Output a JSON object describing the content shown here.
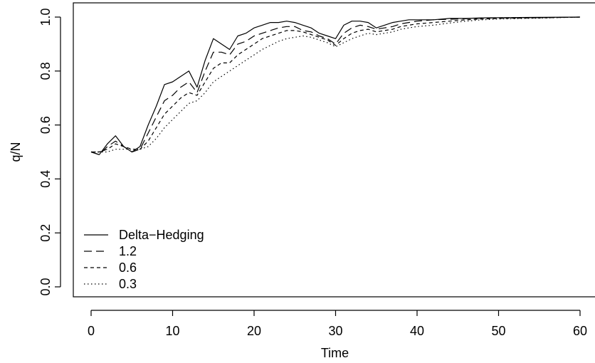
{
  "chart_data": {
    "type": "line",
    "title": "",
    "xlabel": "Time",
    "ylabel": "q/N",
    "xlim": [
      0,
      60
    ],
    "ylim": [
      0,
      1
    ],
    "x_ticks": [
      0,
      10,
      20,
      30,
      40,
      50,
      60
    ],
    "y_ticks": [
      0.0,
      0.2,
      0.4,
      0.6,
      0.8,
      1.0
    ],
    "x_tick_labels": [
      "0",
      "10",
      "20",
      "30",
      "40",
      "50",
      "60"
    ],
    "y_tick_labels": [
      "0.0",
      "0.2",
      "0.4",
      "0.6",
      "0.8",
      "1.0"
    ],
    "grid": false,
    "legend_position": "bottom-left",
    "series": [
      {
        "name": "Delta−Hedging",
        "dash": "solid",
        "x": [
          0,
          1,
          2,
          3,
          4,
          5,
          6,
          7,
          8,
          9,
          10,
          11,
          12,
          13,
          14,
          15,
          16,
          17,
          18,
          19,
          20,
          21,
          22,
          23,
          24,
          25,
          26,
          27,
          28,
          29,
          30,
          31,
          32,
          33,
          34,
          35,
          36,
          37,
          38,
          39,
          40,
          42,
          44,
          46,
          48,
          50,
          55,
          60
        ],
        "y": [
          0.5,
          0.49,
          0.53,
          0.56,
          0.52,
          0.5,
          0.52,
          0.6,
          0.67,
          0.75,
          0.76,
          0.78,
          0.8,
          0.74,
          0.84,
          0.92,
          0.9,
          0.88,
          0.93,
          0.94,
          0.96,
          0.97,
          0.98,
          0.98,
          0.985,
          0.98,
          0.97,
          0.96,
          0.94,
          0.93,
          0.92,
          0.97,
          0.985,
          0.985,
          0.98,
          0.96,
          0.97,
          0.98,
          0.985,
          0.99,
          0.99,
          0.99,
          0.995,
          0.995,
          0.997,
          0.998,
          0.999,
          1.0
        ]
      },
      {
        "name": "1.2",
        "dash": "long-dash",
        "x": [
          0,
          1,
          2,
          3,
          4,
          5,
          6,
          7,
          8,
          9,
          10,
          11,
          12,
          13,
          14,
          15,
          16,
          17,
          18,
          19,
          20,
          21,
          22,
          23,
          24,
          25,
          26,
          27,
          28,
          29,
          30,
          31,
          32,
          33,
          34,
          35,
          36,
          37,
          38,
          39,
          40,
          42,
          44,
          46,
          48,
          50,
          55,
          60
        ],
        "y": [
          0.5,
          0.49,
          0.52,
          0.54,
          0.52,
          0.5,
          0.51,
          0.57,
          0.63,
          0.69,
          0.71,
          0.74,
          0.76,
          0.72,
          0.8,
          0.87,
          0.87,
          0.86,
          0.9,
          0.91,
          0.93,
          0.94,
          0.95,
          0.96,
          0.965,
          0.965,
          0.95,
          0.945,
          0.93,
          0.92,
          0.9,
          0.94,
          0.96,
          0.97,
          0.965,
          0.955,
          0.96,
          0.965,
          0.975,
          0.98,
          0.985,
          0.99,
          0.992,
          0.994,
          0.996,
          0.997,
          0.998,
          1.0
        ]
      },
      {
        "name": "0.6",
        "dash": "short-dash",
        "x": [
          0,
          1,
          2,
          3,
          4,
          5,
          6,
          7,
          8,
          9,
          10,
          11,
          12,
          13,
          14,
          15,
          16,
          17,
          18,
          19,
          20,
          21,
          22,
          23,
          24,
          25,
          26,
          27,
          28,
          29,
          30,
          31,
          32,
          33,
          34,
          35,
          36,
          37,
          38,
          39,
          40,
          42,
          44,
          46,
          48,
          50,
          55,
          60
        ],
        "y": [
          0.5,
          0.5,
          0.51,
          0.53,
          0.52,
          0.51,
          0.51,
          0.54,
          0.59,
          0.64,
          0.67,
          0.7,
          0.72,
          0.71,
          0.76,
          0.81,
          0.83,
          0.83,
          0.86,
          0.88,
          0.9,
          0.92,
          0.93,
          0.94,
          0.95,
          0.95,
          0.945,
          0.935,
          0.925,
          0.915,
          0.895,
          0.92,
          0.94,
          0.95,
          0.955,
          0.945,
          0.95,
          0.955,
          0.965,
          0.97,
          0.975,
          0.98,
          0.985,
          0.99,
          0.993,
          0.995,
          0.997,
          1.0
        ]
      },
      {
        "name": "0.3",
        "dash": "dotted",
        "x": [
          0,
          1,
          2,
          3,
          4,
          5,
          6,
          7,
          8,
          9,
          10,
          11,
          12,
          13,
          14,
          15,
          16,
          17,
          18,
          19,
          20,
          21,
          22,
          23,
          24,
          25,
          26,
          27,
          28,
          29,
          30,
          31,
          32,
          33,
          34,
          35,
          36,
          37,
          38,
          39,
          40,
          42,
          44,
          46,
          48,
          50,
          55,
          60
        ],
        "y": [
          0.5,
          0.5,
          0.5,
          0.51,
          0.51,
          0.51,
          0.51,
          0.52,
          0.55,
          0.59,
          0.62,
          0.65,
          0.68,
          0.69,
          0.72,
          0.76,
          0.78,
          0.8,
          0.82,
          0.84,
          0.86,
          0.88,
          0.895,
          0.91,
          0.92,
          0.925,
          0.93,
          0.925,
          0.915,
          0.905,
          0.89,
          0.905,
          0.92,
          0.93,
          0.94,
          0.935,
          0.94,
          0.945,
          0.955,
          0.96,
          0.965,
          0.97,
          0.978,
          0.985,
          0.99,
          0.993,
          0.996,
          1.0
        ]
      }
    ]
  }
}
